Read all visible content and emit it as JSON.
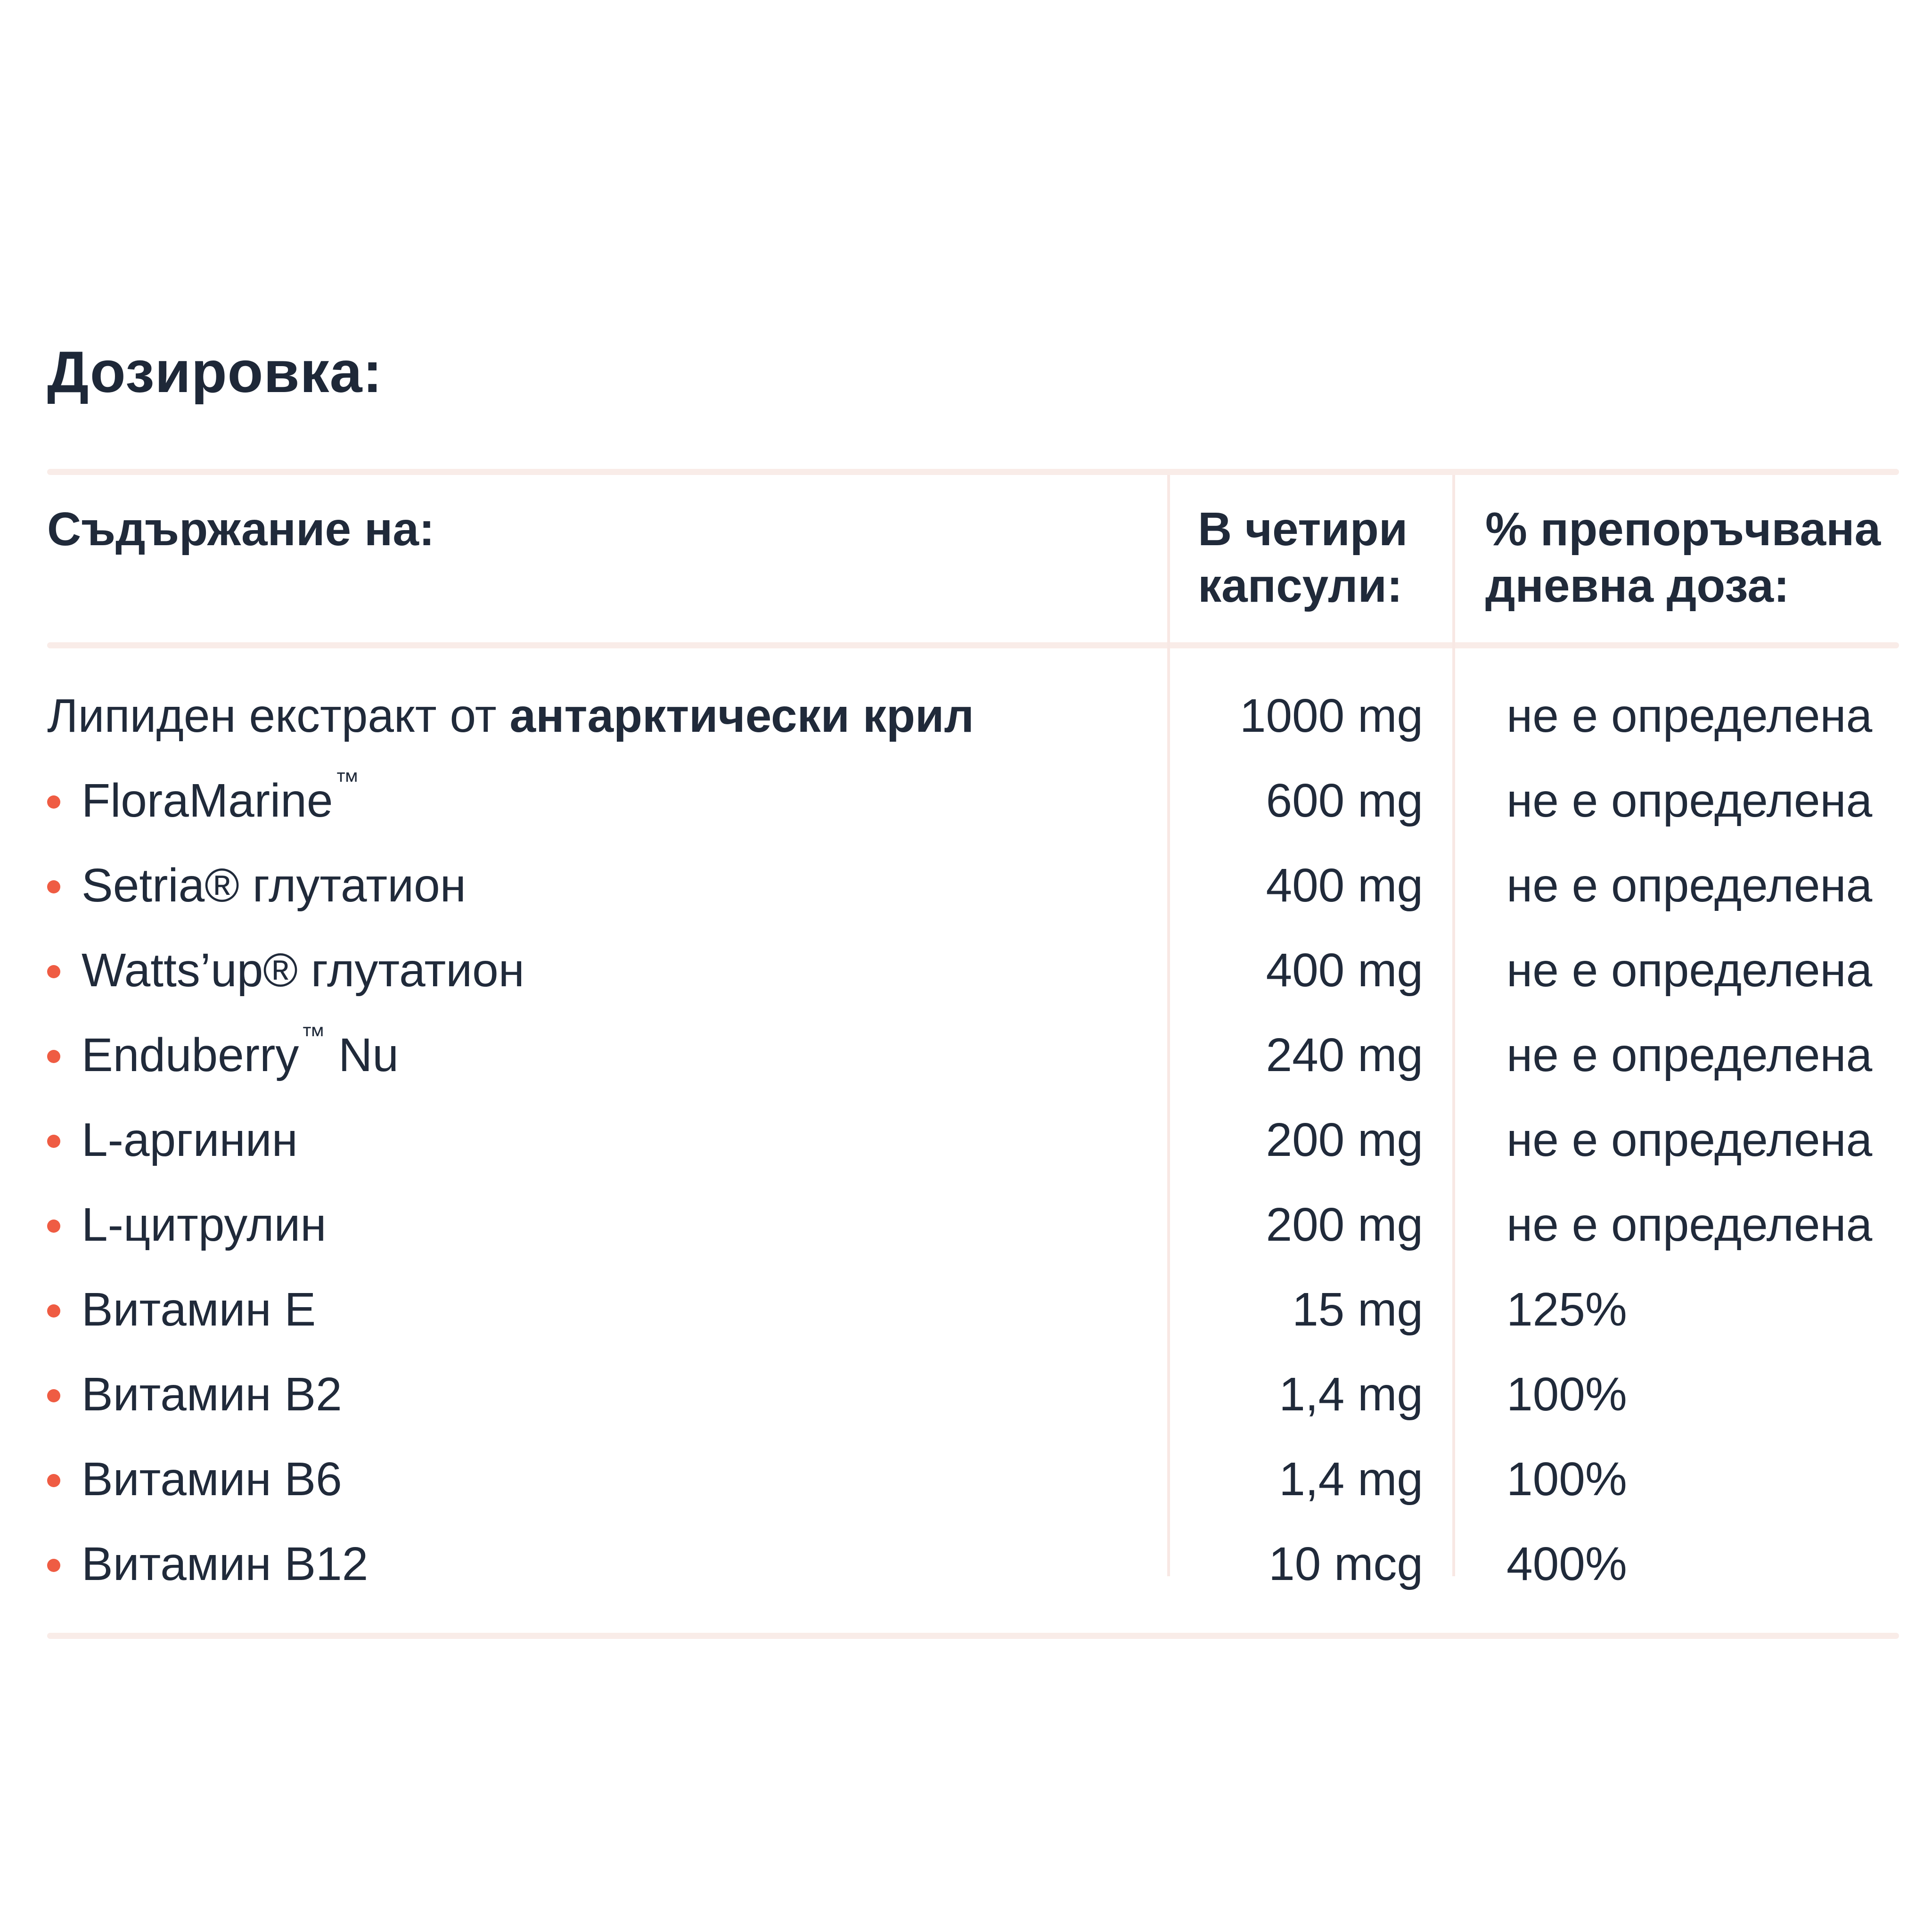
{
  "page": {
    "title": "Дозировка:"
  },
  "colors": {
    "text": "#202a3a",
    "bullet": "#ef5c43",
    "separator": "#f9ece8",
    "divider": "#f8e8e4",
    "background": "#ffffff"
  },
  "table": {
    "columns": [
      {
        "label": "Съдържание на:"
      },
      {
        "label": "В четири капсули:"
      },
      {
        "label": "% препоръчвана дневна доза:"
      }
    ],
    "rows": [
      {
        "bullet": false,
        "pre": "Липиден екстракт от ",
        "bold": "антарктически крил",
        "sup": "",
        "post": "",
        "amount": "1000 mg",
        "daily": "не е определена"
      },
      {
        "bullet": true,
        "pre": "FloraMarine",
        "bold": "",
        "sup": "™",
        "post": "",
        "amount": "600 mg",
        "daily": "не е определена"
      },
      {
        "bullet": true,
        "pre": "Setria® глутатион",
        "bold": "",
        "sup": "",
        "post": "",
        "amount": "400 mg",
        "daily": "не е определена"
      },
      {
        "bullet": true,
        "pre": "Watts’up® глутатион",
        "bold": "",
        "sup": "",
        "post": "",
        "amount": "400 mg",
        "daily": "не е определена"
      },
      {
        "bullet": true,
        "pre": "Enduberry",
        "bold": "",
        "sup": "™",
        "post": " Nu",
        "amount": "240 mg",
        "daily": "не е определена"
      },
      {
        "bullet": true,
        "pre": "L-аргинин",
        "bold": "",
        "sup": "",
        "post": "",
        "amount": "200 mg",
        "daily": "не е определена"
      },
      {
        "bullet": true,
        "pre": "L-цитрулин",
        "bold": "",
        "sup": "",
        "post": "",
        "amount": "200 mg",
        "daily": "не е определена"
      },
      {
        "bullet": true,
        "pre": "Витамин Е",
        "bold": "",
        "sup": "",
        "post": "",
        "amount": "15 mg",
        "daily": "125%"
      },
      {
        "bullet": true,
        "pre": "Витамин В2",
        "bold": "",
        "sup": "",
        "post": "",
        "amount": "1,4 mg",
        "daily": "100%"
      },
      {
        "bullet": true,
        "pre": "Витамин В6",
        "bold": "",
        "sup": "",
        "post": "",
        "amount": "1,4 mg",
        "daily": "100%"
      },
      {
        "bullet": true,
        "pre": "Витамин В12",
        "bold": "",
        "sup": "",
        "post": "",
        "amount": "10 mcg",
        "daily": "400%"
      }
    ]
  }
}
